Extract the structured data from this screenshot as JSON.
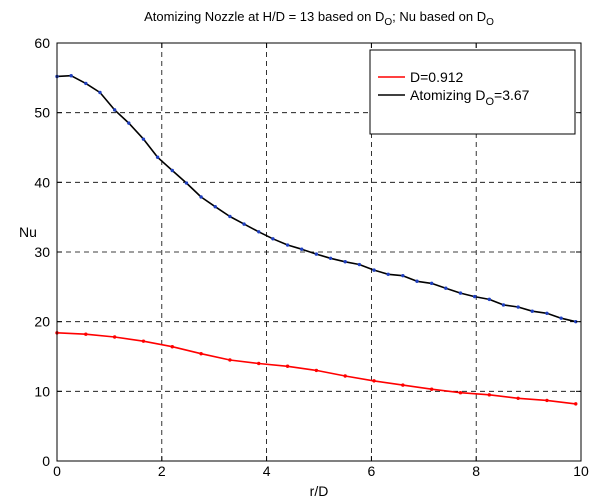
{
  "chart_data": {
    "type": "line",
    "title": {
      "main": "Atomizing Nozzle at H/D = 13 based on D",
      "sub1": "O",
      "mid": "; Nu based on D",
      "sub2": "O"
    },
    "xlabel": "r/D",
    "ylabel": "Nu",
    "xlim": [
      0,
      10
    ],
    "ylim": [
      0,
      60
    ],
    "xticks": [
      "0",
      "2",
      "4",
      "6",
      "8",
      "10"
    ],
    "yticks": [
      "0",
      "10",
      "20",
      "30",
      "40",
      "50",
      "60"
    ],
    "grid": true,
    "legend_position": "top-right",
    "series": [
      {
        "name": "D=0.912",
        "name_parts": {
          "main": "D=0.912",
          "sub": "",
          "tail": ""
        },
        "color": "#ff0000",
        "marker_color": "#ff0000",
        "x": [
          0,
          0.55,
          1.1,
          1.65,
          2.2,
          2.75,
          3.3,
          3.85,
          4.4,
          4.95,
          5.5,
          6.05,
          6.6,
          7.15,
          7.7,
          8.25,
          8.8,
          9.35,
          9.9
        ],
        "y": [
          18.4,
          18.2,
          17.8,
          17.2,
          16.4,
          15.4,
          14.5,
          14.0,
          13.6,
          13.0,
          12.2,
          11.5,
          10.9,
          10.3,
          9.8,
          9.5,
          9.0,
          8.7,
          8.2
        ]
      },
      {
        "name": "Atomizing DO=3.67",
        "name_parts": {
          "main": "Atomizing D",
          "sub": "O",
          "tail": "=3.67"
        },
        "color": "#000000",
        "marker_color": "#1f3fbf",
        "x": [
          0,
          0.27,
          0.55,
          0.82,
          1.1,
          1.37,
          1.65,
          1.92,
          2.2,
          2.47,
          2.75,
          3.02,
          3.3,
          3.57,
          3.85,
          4.12,
          4.4,
          4.67,
          4.95,
          5.22,
          5.5,
          5.77,
          6.05,
          6.32,
          6.6,
          6.87,
          7.15,
          7.42,
          7.7,
          7.97,
          8.25,
          8.52,
          8.8,
          9.07,
          9.35,
          9.62,
          9.9
        ],
        "y": [
          55.2,
          55.3,
          54.2,
          52.9,
          50.4,
          48.5,
          46.2,
          43.6,
          41.7,
          39.9,
          37.9,
          36.5,
          35.1,
          34.0,
          32.9,
          31.9,
          31.0,
          30.4,
          29.7,
          29.1,
          28.6,
          28.2,
          27.4,
          26.8,
          26.6,
          25.8,
          25.5,
          24.8,
          24.1,
          23.6,
          23.2,
          22.4,
          22.1,
          21.5,
          21.2,
          20.5,
          20.0
        ]
      }
    ]
  }
}
